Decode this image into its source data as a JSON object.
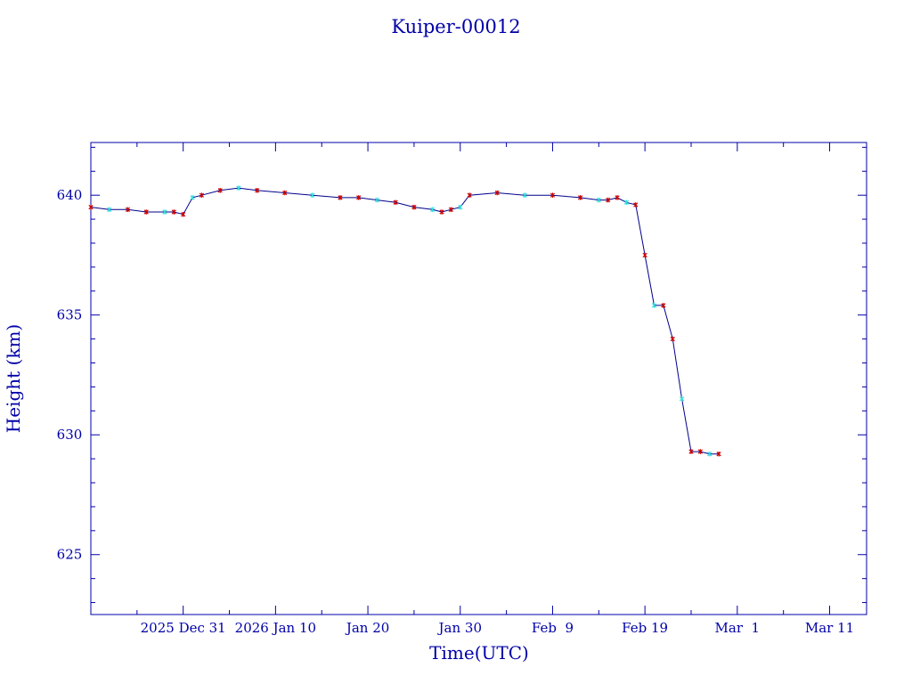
{
  "chart_data": {
    "type": "line",
    "title": "Kuiper-00012",
    "xlabel": "Time(UTC)",
    "ylabel": "Height (km)",
    "x_tick_labels": [
      "2025 Dec 31",
      "2026 Jan 10",
      "Jan 20",
      "Jan 30",
      "Feb  9",
      "Feb 19",
      "Mar  1",
      "Mar 11"
    ],
    "x_tick_dates": [
      "2025-12-31",
      "2026-01-10",
      "2026-01-20",
      "2026-01-30",
      "2026-02-09",
      "2026-02-19",
      "2026-03-01",
      "2026-03-11"
    ],
    "xlim": [
      "2025-12-21",
      "2026-03-15"
    ],
    "ylim": [
      622.5,
      642.2
    ],
    "y_ticks": [
      625,
      630,
      635,
      640
    ],
    "y_tick_labels": [
      "625",
      "630",
      "635",
      "640"
    ],
    "grid": false,
    "colors": {
      "axis": "#0000a8",
      "line": "#00008b",
      "marker_main": "#cc0000",
      "marker_alt": "#33dddd"
    },
    "series": [
      {
        "x": [
          "2025-12-21",
          "2025-12-23",
          "2025-12-25",
          "2025-12-27",
          "2025-12-29",
          "2025-12-30",
          "2025-12-31",
          "2026-01-01",
          "2026-01-02",
          "2026-01-04",
          "2026-01-06",
          "2026-01-08",
          "2026-01-11",
          "2026-01-14",
          "2026-01-17",
          "2026-01-19",
          "2026-01-21",
          "2026-01-23",
          "2026-01-25",
          "2026-01-27",
          "2026-01-28",
          "2026-01-29",
          "2026-01-30",
          "2026-01-31",
          "2026-02-03",
          "2026-02-06",
          "2026-02-09",
          "2026-02-12",
          "2026-02-14",
          "2026-02-15",
          "2026-02-16",
          "2026-02-17",
          "2026-02-18",
          "2026-02-19",
          "2026-02-20",
          "2026-02-21",
          "2026-02-22",
          "2026-02-23",
          "2026-02-24",
          "2026-02-25",
          "2026-02-26",
          "2026-02-27"
        ],
        "y": [
          639.5,
          639.4,
          639.4,
          639.3,
          639.3,
          639.3,
          639.2,
          639.9,
          640.0,
          640.2,
          640.3,
          640.2,
          640.1,
          640.0,
          639.9,
          639.9,
          639.8,
          639.7,
          639.5,
          639.4,
          639.3,
          639.4,
          639.5,
          640.0,
          640.1,
          640.0,
          640.0,
          639.9,
          639.8,
          639.8,
          639.9,
          639.7,
          639.6,
          637.5,
          635.4,
          635.4,
          634.0,
          631.5,
          629.3,
          629.3,
          629.2,
          629.2
        ]
      }
    ]
  }
}
